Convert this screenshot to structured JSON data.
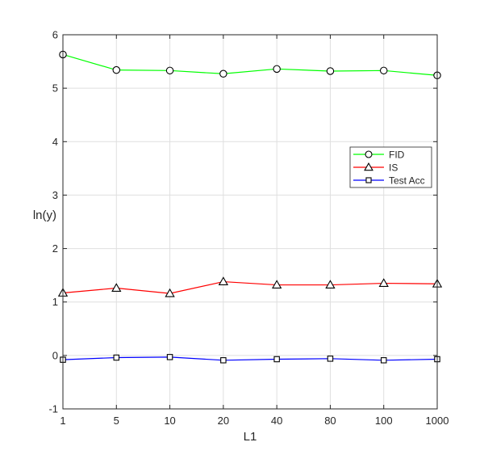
{
  "chart_data": {
    "type": "line",
    "title": "",
    "xlabel": "L1",
    "ylabel": "ln(y)",
    "categories": [
      "1",
      "5",
      "10",
      "20",
      "40",
      "80",
      "100",
      "1000"
    ],
    "ylim": [
      -1,
      6
    ],
    "yticks": [
      -1,
      0,
      1,
      2,
      3,
      4,
      5,
      6
    ],
    "grid": true,
    "legend_position": "right",
    "series": [
      {
        "name": "FID",
        "color": "#00ff00",
        "marker": "circle",
        "values": [
          5.63,
          5.34,
          5.33,
          5.27,
          5.36,
          5.32,
          5.33,
          5.24
        ]
      },
      {
        "name": "IS",
        "color": "#ff0000",
        "marker": "triangle",
        "values": [
          1.17,
          1.26,
          1.16,
          1.38,
          1.32,
          1.32,
          1.35,
          1.34
        ]
      },
      {
        "name": "Test Acc",
        "color": "#0000ff",
        "marker": "square",
        "values": [
          -0.08,
          -0.04,
          -0.03,
          -0.09,
          -0.07,
          -0.06,
          -0.09,
          -0.07
        ]
      }
    ]
  }
}
